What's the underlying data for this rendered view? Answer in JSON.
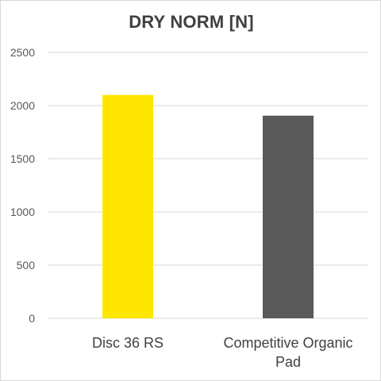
{
  "chart_data": {
    "type": "bar",
    "title": "DRY NORM [N]",
    "categories": [
      [
        "Disc 36 RS"
      ],
      [
        "Competitive Organic",
        "Pad"
      ]
    ],
    "values": [
      2100,
      1905
    ],
    "colors": [
      "#ffe600",
      "#595959"
    ],
    "ylim": [
      0,
      2500
    ],
    "yticks": [
      "0",
      "500",
      "1000",
      "1500",
      "2000",
      "2500"
    ],
    "grid": true,
    "legend": "none"
  }
}
